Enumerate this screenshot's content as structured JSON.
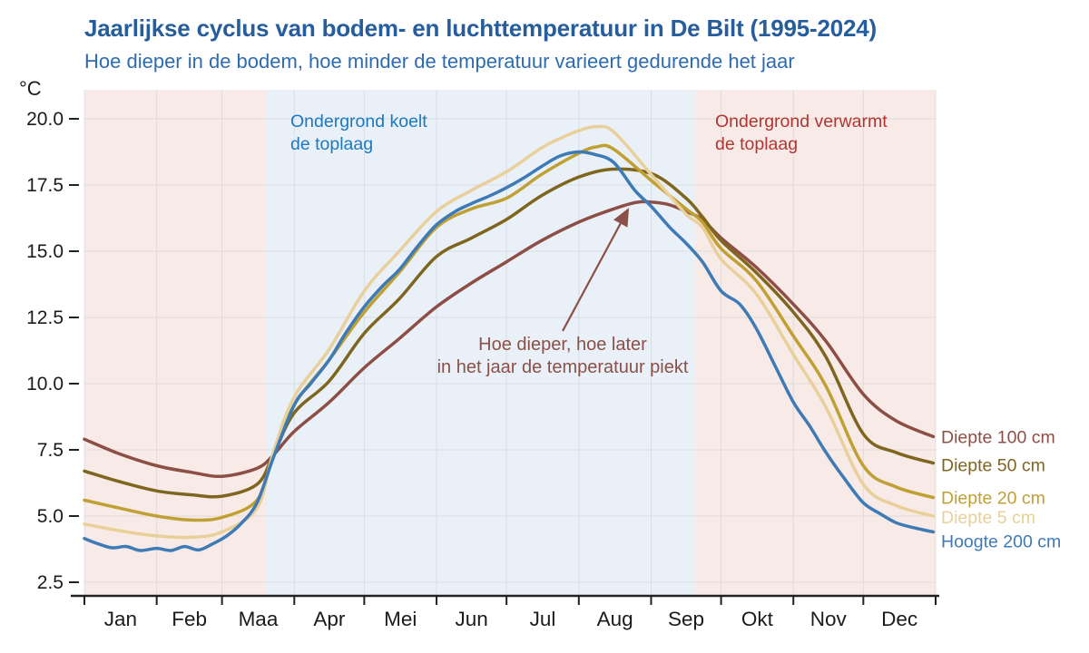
{
  "title": "Jaarlijkse cyclus van bodem- en luchttemperatuur in De Bilt (1995-2024)",
  "subtitle": "Hoe dieper in de bodem, hoe minder de temperatuur varieert gedurende het jaar",
  "unit_label": "°C",
  "annotations": {
    "cooling": "Ondergrond koelt\nde toplaag",
    "warming": "Ondergrond verwarmt\nde toplaag",
    "peak_note": "Hoe dieper, hoe later\nin het jaar de temperatuur piekt"
  },
  "colors": {
    "title": "#265d9d",
    "subtitle": "#2e6cb2",
    "cooling_text": "#1b79c0",
    "warming_text": "#b23531",
    "peak_text": "#8b5047",
    "band_pink": "#f7eae7",
    "band_blue": "#e9f0f8",
    "axis": "#222222",
    "grid": "#c9c9c9",
    "tick_text": "#1b1b1b"
  },
  "chart_data": {
    "type": "line",
    "x_unit": "day-of-year",
    "months": [
      "Jan",
      "Feb",
      "Maa",
      "Apr",
      "Mei",
      "Jun",
      "Jul",
      "Aug",
      "Sep",
      "Okt",
      "Nov",
      "Dec"
    ],
    "month_start_days": [
      0,
      31,
      59,
      90,
      120,
      151,
      181,
      212,
      243,
      273,
      304,
      334,
      365
    ],
    "ylabel": "°C",
    "y_ticks": [
      "2.5",
      "5.0",
      "7.5",
      "10.0",
      "12.5",
      "15.0",
      "17.5",
      "20.0"
    ],
    "ylim": [
      2.0,
      21.1
    ],
    "grid": true,
    "background_bands": [
      {
        "from_day": 0,
        "to_day": 78,
        "meaning": "ondergrond verwarmt de toplaag",
        "color": "#f7eae7"
      },
      {
        "from_day": 78,
        "to_day": 262,
        "meaning": "ondergrond koelt de toplaag",
        "color": "#e9f0f8"
      },
      {
        "from_day": 262,
        "to_day": 365,
        "meaning": "ondergrond verwarmt de toplaag",
        "color": "#f7eae7"
      }
    ],
    "series": [
      {
        "name": "diepte-100cm",
        "label": "Diepte 100 cm",
        "color": "#8d4e45",
        "label_dy": 0,
        "days": [
          0,
          15,
          31,
          46,
          59,
          74,
          81,
          90,
          105,
          120,
          135,
          151,
          166,
          181,
          196,
          212,
          227,
          237,
          244,
          251,
          258,
          265,
          273,
          288,
          304,
          318,
          334,
          348,
          364
        ],
        "values": [
          7.9,
          7.35,
          6.9,
          6.65,
          6.5,
          6.8,
          7.3,
          8.2,
          9.3,
          10.6,
          11.7,
          12.9,
          13.8,
          14.6,
          15.4,
          16.1,
          16.6,
          16.85,
          16.85,
          16.75,
          16.5,
          16.2,
          15.5,
          14.4,
          13.0,
          11.6,
          9.6,
          8.6,
          8.0
        ]
      },
      {
        "name": "diepte-50cm",
        "label": "Diepte 50 cm",
        "color": "#7f661f",
        "label_dy": 2,
        "days": [
          0,
          15,
          31,
          46,
          59,
          74,
          81,
          90,
          105,
          120,
          135,
          151,
          166,
          181,
          196,
          212,
          227,
          244,
          258,
          265,
          273,
          288,
          304,
          318,
          334,
          348,
          364
        ],
        "values": [
          6.7,
          6.3,
          5.95,
          5.8,
          5.75,
          6.2,
          7.3,
          8.9,
          10.1,
          11.9,
          13.2,
          14.8,
          15.5,
          16.2,
          17.1,
          17.8,
          18.1,
          17.9,
          17.0,
          16.3,
          15.4,
          14.2,
          12.7,
          11.0,
          8.1,
          7.4,
          7.0
        ]
      },
      {
        "name": "diepte-20cm",
        "label": "Diepte 20 cm",
        "color": "#c0a032",
        "label_dy": 0,
        "days": [
          0,
          15,
          31,
          46,
          59,
          74,
          81,
          90,
          105,
          120,
          135,
          151,
          166,
          181,
          196,
          212,
          220,
          227,
          244,
          258,
          265,
          273,
          288,
          304,
          318,
          334,
          348,
          364
        ],
        "values": [
          5.6,
          5.3,
          5.0,
          4.85,
          4.95,
          5.6,
          7.3,
          9.2,
          10.9,
          12.7,
          14.2,
          15.9,
          16.6,
          17.0,
          17.9,
          18.7,
          18.95,
          18.85,
          17.6,
          16.6,
          16.1,
          15.1,
          13.9,
          11.8,
          9.9,
          6.9,
          6.1,
          5.7
        ]
      },
      {
        "name": "diepte-5cm",
        "label": "Diepte 5 cm",
        "color": "#e9d09b",
        "label_dy": 1,
        "days": [
          0,
          15,
          31,
          46,
          59,
          74,
          81,
          90,
          105,
          120,
          135,
          151,
          166,
          181,
          196,
          205,
          212,
          219,
          227,
          244,
          258,
          265,
          273,
          288,
          304,
          318,
          334,
          348,
          364
        ],
        "values": [
          4.7,
          4.45,
          4.25,
          4.2,
          4.4,
          5.3,
          7.4,
          9.5,
          11.3,
          13.5,
          15.0,
          16.5,
          17.3,
          18.0,
          18.9,
          19.3,
          19.55,
          19.7,
          19.5,
          17.8,
          16.4,
          15.9,
          14.7,
          13.4,
          11.1,
          9.1,
          6.2,
          5.4,
          5.0
        ]
      },
      {
        "name": "hoogte-200cm",
        "label": "Hoogte 200 cm",
        "color": "#3e7ab5",
        "label_dy": 10,
        "days": [
          0,
          6,
          12,
          18,
          24,
          31,
          37,
          43,
          49,
          55,
          61,
          67,
          74,
          81,
          90,
          97,
          105,
          112,
          120,
          128,
          135,
          143,
          151,
          159,
          166,
          174,
          181,
          189,
          196,
          204,
          212,
          219,
          227,
          236,
          243,
          251,
          258,
          265,
          273,
          281,
          288,
          296,
          304,
          311,
          318,
          326,
          334,
          341,
          348,
          356,
          364
        ],
        "values": [
          4.15,
          3.95,
          3.8,
          3.85,
          3.7,
          3.78,
          3.7,
          3.85,
          3.72,
          3.95,
          4.25,
          4.7,
          5.5,
          7.2,
          9.2,
          10.0,
          10.9,
          11.9,
          12.9,
          13.7,
          14.3,
          15.2,
          16.0,
          16.5,
          16.8,
          17.1,
          17.4,
          17.8,
          18.2,
          18.6,
          18.75,
          18.65,
          18.35,
          17.3,
          16.7,
          15.9,
          15.3,
          14.6,
          13.5,
          13.0,
          12.1,
          10.7,
          9.3,
          8.4,
          7.4,
          6.4,
          5.5,
          5.1,
          4.75,
          4.55,
          4.4
        ]
      }
    ],
    "peak_values": {
      "diepte-5cm": 19.7,
      "diepte-20cm": 19.0,
      "hoogte-200cm": 18.8,
      "diepte-50cm": 18.1,
      "diepte-100cm": 16.9
    }
  }
}
